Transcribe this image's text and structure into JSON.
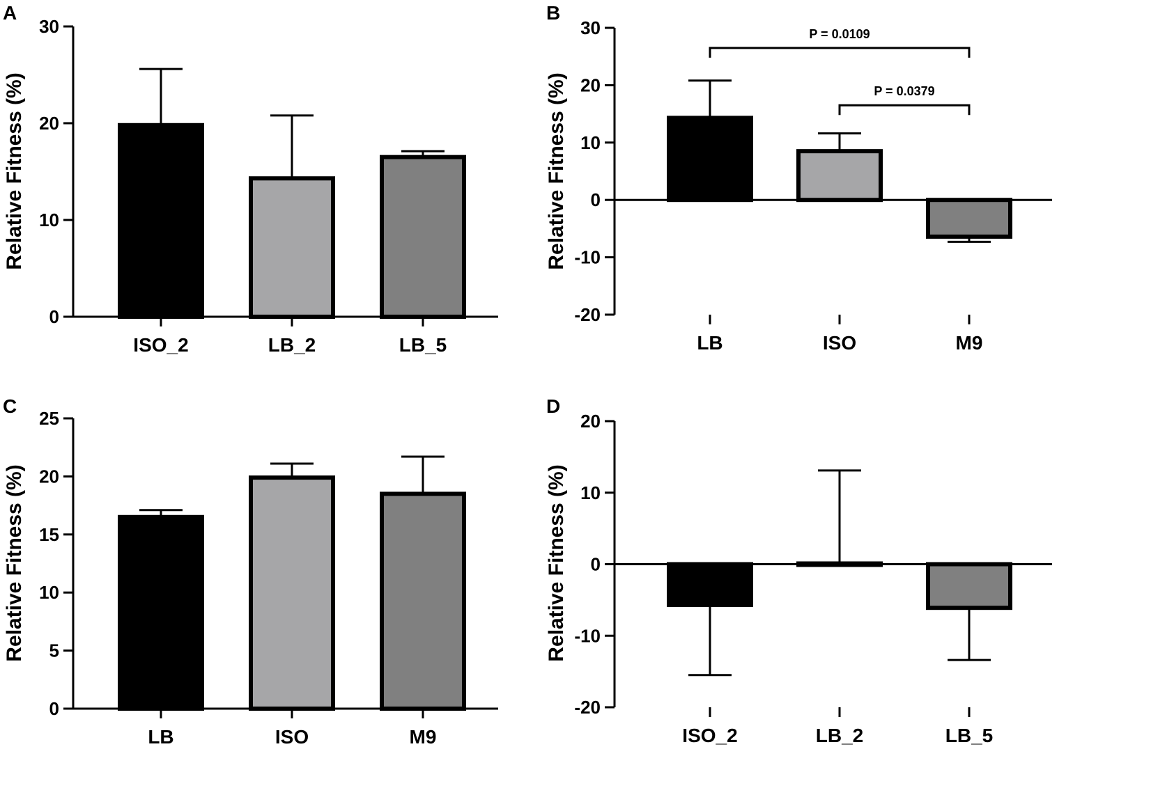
{
  "figure": {
    "panels": [
      "A",
      "B",
      "C",
      "D"
    ]
  },
  "chart_data": [
    {
      "panel": "A",
      "type": "bar",
      "title": "",
      "xlabel": "",
      "ylabel": "Relative Fitness (%)",
      "ylim": [
        0,
        30
      ],
      "yticks": [
        0,
        10,
        20,
        30
      ],
      "categories": [
        "ISO_2",
        "LB_2",
        "LB_5"
      ],
      "values": [
        19.8,
        14.3,
        16.5
      ],
      "errors": [
        5.8,
        6.5,
        0.6
      ],
      "fills": [
        "#000000",
        "#a6a6a8",
        "#808080"
      ],
      "significance": []
    },
    {
      "panel": "B",
      "type": "bar",
      "title": "",
      "xlabel": "",
      "ylabel": "Relative Fitness (%)",
      "ylim": [
        -20,
        30
      ],
      "yticks": [
        -20,
        -10,
        0,
        10,
        20,
        30
      ],
      "categories": [
        "LB",
        "ISO",
        "M9"
      ],
      "values": [
        14.3,
        8.5,
        -6.4
      ],
      "errors": [
        6.5,
        3.1,
        0.9
      ],
      "fills": [
        "#000000",
        "#a6a6a8",
        "#808080"
      ],
      "significance": [
        {
          "from": 0,
          "to": 2,
          "label": "P = 0.0109",
          "level": 26.5
        },
        {
          "from": 1,
          "to": 2,
          "label": "P = 0.0379",
          "level": 16.5
        }
      ]
    },
    {
      "panel": "C",
      "type": "bar",
      "title": "",
      "xlabel": "",
      "ylabel": "Relative Fitness (%)",
      "ylim": [
        0,
        25
      ],
      "yticks": [
        0,
        5,
        10,
        15,
        20,
        25
      ],
      "categories": [
        "LB",
        "ISO",
        "M9"
      ],
      "values": [
        16.5,
        19.9,
        18.5
      ],
      "errors": [
        0.6,
        1.2,
        3.2
      ],
      "fills": [
        "#000000",
        "#a6a6a8",
        "#808080"
      ],
      "significance": []
    },
    {
      "panel": "D",
      "type": "bar",
      "title": "",
      "xlabel": "",
      "ylabel": "Relative Fitness (%)",
      "ylim": [
        -20,
        20
      ],
      "yticks": [
        -20,
        -10,
        0,
        10,
        20
      ],
      "categories": [
        "ISO_2",
        "LB_2",
        "LB_5"
      ],
      "values": [
        -5.7,
        0.1,
        -6.1
      ],
      "errors": [
        9.8,
        13.0,
        7.3
      ],
      "fills": [
        "#000000",
        "#a6a6a8",
        "#808080"
      ],
      "significance": []
    }
  ]
}
